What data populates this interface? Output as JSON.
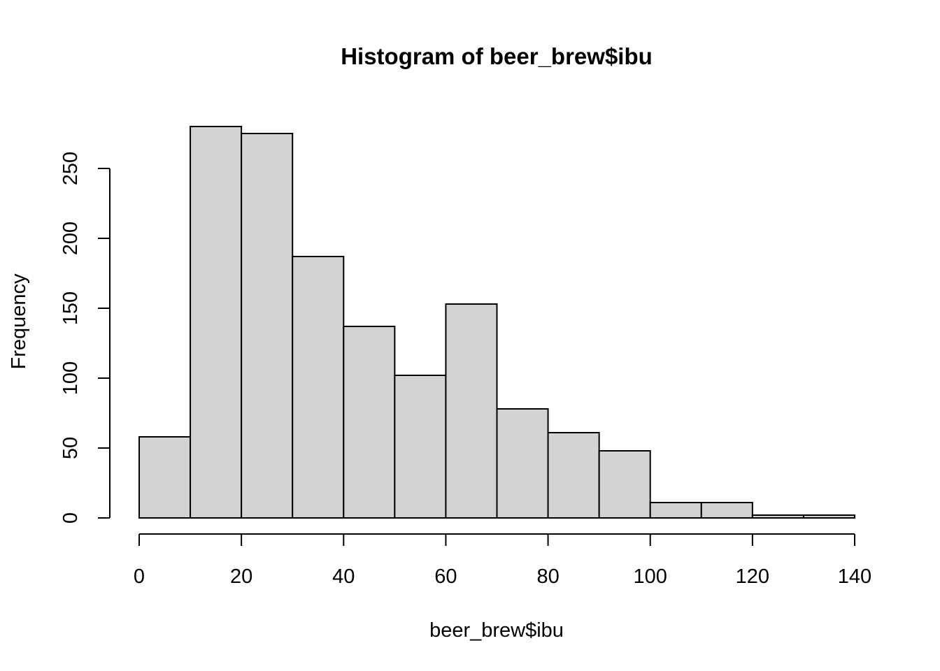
{
  "chart_data": {
    "type": "bar",
    "title": "Histogram of beer_brew$ibu",
    "xlabel": "beer_brew$ibu",
    "ylabel": "Frequency",
    "bin_edges": [
      0,
      10,
      20,
      30,
      40,
      50,
      60,
      70,
      80,
      90,
      100,
      110,
      120,
      130,
      140
    ],
    "categories": [
      "0-10",
      "10-20",
      "20-30",
      "30-40",
      "40-50",
      "50-60",
      "60-70",
      "70-80",
      "80-90",
      "90-100",
      "100-110",
      "110-120",
      "120-130",
      "130-140"
    ],
    "values": [
      58,
      280,
      275,
      187,
      137,
      102,
      153,
      78,
      61,
      48,
      11,
      11,
      2,
      2
    ],
    "xlim": [
      0,
      140
    ],
    "ylim": [
      0,
      280
    ],
    "x_ticks": [
      0,
      20,
      40,
      60,
      80,
      100,
      120,
      140
    ],
    "y_ticks": [
      0,
      50,
      100,
      150,
      200,
      250
    ],
    "bar_fill": "#d3d3d3",
    "bar_stroke": "#000000",
    "grid": false,
    "legend": "none"
  }
}
